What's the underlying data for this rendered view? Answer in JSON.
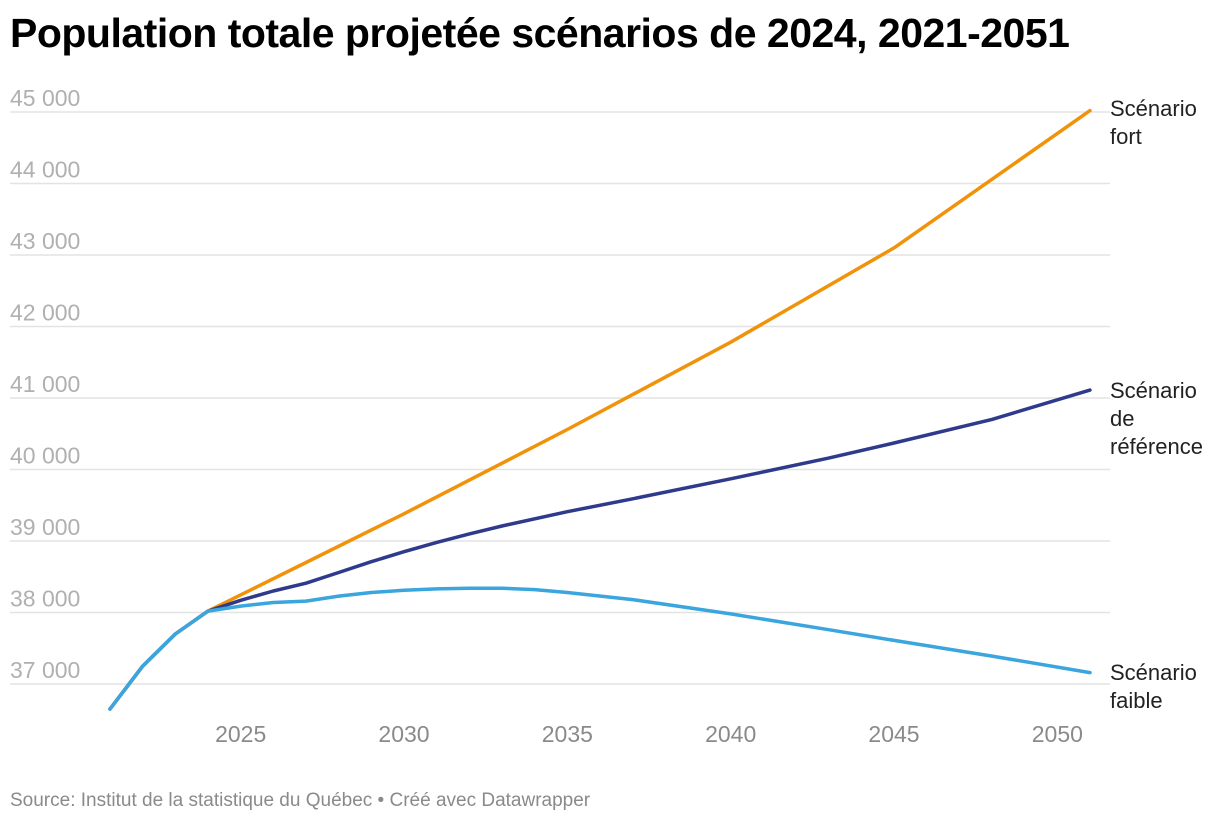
{
  "title": "Population totale projetée scénarios de 2024, 2021-2051",
  "source": "Source: Institut de la statistique du Québec • Créé avec Datawrapper",
  "chart_data": {
    "type": "line",
    "title": "Population totale projetée scénarios de 2024, 2021-2051",
    "xlabel": "",
    "ylabel": "",
    "xlim": [
      2021,
      2051
    ],
    "ylim": [
      36500,
      45300
    ],
    "y_ticks": [
      {
        "value": 37000,
        "label": "37 000"
      },
      {
        "value": 38000,
        "label": "38 000"
      },
      {
        "value": 39000,
        "label": "39 000"
      },
      {
        "value": 40000,
        "label": "40 000"
      },
      {
        "value": 41000,
        "label": "41 000"
      },
      {
        "value": 42000,
        "label": "42 000"
      },
      {
        "value": 43000,
        "label": "43 000"
      },
      {
        "value": 44000,
        "label": "44 000"
      },
      {
        "value": 45000,
        "label": "45 000"
      }
    ],
    "x_ticks": [
      {
        "value": 2025,
        "label": "2025"
      },
      {
        "value": 2030,
        "label": "2030"
      },
      {
        "value": 2035,
        "label": "2035"
      },
      {
        "value": 2040,
        "label": "2040"
      },
      {
        "value": 2045,
        "label": "2045"
      },
      {
        "value": 2050,
        "label": "2050"
      }
    ],
    "grid": true,
    "legend": "inline-right",
    "series": [
      {
        "name": "Scénario fort",
        "label_lines": [
          "Scénario",
          "fort"
        ],
        "color": "#f0930a",
        "x": [
          2021,
          2022,
          2023,
          2024,
          2027,
          2030,
          2035,
          2040,
          2045,
          2051
        ],
        "values": [
          36650,
          37250,
          37700,
          38020,
          38700,
          39380,
          40560,
          41780,
          43100,
          45020
        ]
      },
      {
        "name": "Scénario de référence",
        "label_lines": [
          "Scénario",
          "de",
          "référence"
        ],
        "color": "#2f3a8c",
        "x": [
          2021,
          2022,
          2023,
          2024,
          2025,
          2026,
          2027,
          2028,
          2029,
          2030,
          2031,
          2032,
          2033,
          2035,
          2037,
          2040,
          2043,
          2045,
          2048,
          2051
        ],
        "values": [
          36650,
          37250,
          37700,
          38020,
          38170,
          38300,
          38410,
          38560,
          38710,
          38850,
          38980,
          39100,
          39210,
          39410,
          39590,
          39870,
          40160,
          40370,
          40700,
          41110
        ]
      },
      {
        "name": "Scénario faible",
        "label_lines": [
          "Scénario",
          "faible"
        ],
        "color": "#3aa6dd",
        "x": [
          2021,
          2022,
          2023,
          2024,
          2025,
          2026,
          2027,
          2028,
          2029,
          2030,
          2031,
          2032,
          2033,
          2034,
          2035,
          2037,
          2040,
          2043,
          2045,
          2048,
          2051
        ],
        "values": [
          36650,
          37250,
          37700,
          38020,
          38090,
          38140,
          38160,
          38230,
          38280,
          38310,
          38330,
          38340,
          38340,
          38320,
          38280,
          38180,
          37980,
          37760,
          37610,
          37390,
          37160
        ]
      }
    ]
  }
}
